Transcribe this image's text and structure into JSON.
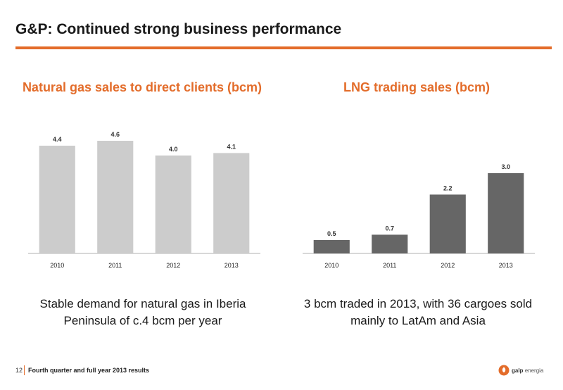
{
  "slide": {
    "title": "G&P: Continued strong business performance",
    "accent_color": "#E36C2A"
  },
  "footer": {
    "page_number": "12",
    "text": "Fourth quarter and full year 2013 results",
    "logo_brand": "galp",
    "logo_suffix": "energia"
  },
  "captions": {
    "left": "Stable demand for natural gas in Iberia Peninsula of c.4 bcm per year",
    "right": "3 bcm traded in 2013, with 36 cargoes sold mainly to LatAm and Asia"
  },
  "chart_data": [
    {
      "type": "bar",
      "title": "Natural gas sales to direct clients (bcm)",
      "categories": [
        "2010",
        "2011",
        "2012",
        "2013"
      ],
      "values": [
        4.4,
        4.6,
        4.0,
        4.1
      ],
      "value_labels": [
        "4.4",
        "4.6",
        "4.0",
        "4.1"
      ],
      "ylim": [
        0,
        4.6
      ],
      "bar_color": "#CCCCCC",
      "grid": false,
      "legend": "none"
    },
    {
      "type": "bar",
      "title": "LNG trading sales (bcm)",
      "categories": [
        "2010",
        "2011",
        "2012",
        "2013"
      ],
      "values": [
        0.5,
        0.7,
        2.2,
        3.0
      ],
      "value_labels": [
        "0.5",
        "0.7",
        "2.2",
        "3.0"
      ],
      "ylim": [
        0,
        3.0
      ],
      "bar_color": "#666666",
      "grid": false,
      "legend": "none"
    }
  ]
}
